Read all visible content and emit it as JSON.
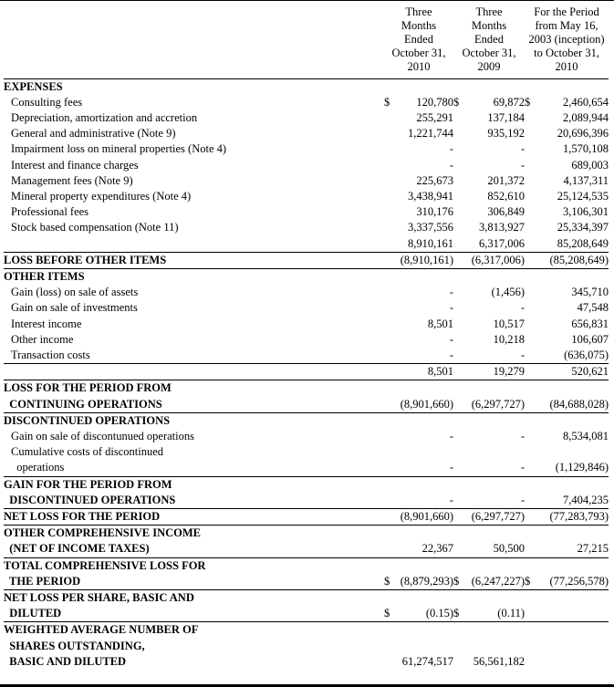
{
  "document": {
    "type": "financial-statement",
    "currency_symbol": "$",
    "colors": {
      "text": "#000000",
      "background": "#ffffff",
      "rule": "#000000"
    }
  },
  "table": {
    "columns": [
      {
        "name": "three-months-2010",
        "lines": [
          "Three",
          "Months",
          "Ended",
          "October 31,",
          "2010"
        ]
      },
      {
        "name": "three-months-2009",
        "lines": [
          "Three",
          "Months",
          "Ended",
          "October 31,",
          "2009"
        ]
      },
      {
        "name": "inception-to-date",
        "lines": [
          "For the Period",
          "from May 16,",
          "2003 (inception)",
          "to October 31,",
          "2010"
        ]
      }
    ],
    "rows": [
      {
        "label_lines": [
          "EXPENSES"
        ],
        "bold": true,
        "values": [
          "",
          "",
          ""
        ]
      },
      {
        "label_lines": [
          "Consulting fees"
        ],
        "indent": true,
        "dollars": [
          true,
          true,
          true
        ],
        "values": [
          "120,780",
          "69,872",
          "2,460,654"
        ]
      },
      {
        "label_lines": [
          "Depreciation, amortization and accretion"
        ],
        "indent": true,
        "values": [
          "255,291",
          "137,184",
          "2,089,944"
        ]
      },
      {
        "label_lines": [
          "General and administrative (Note 9)"
        ],
        "indent": true,
        "values": [
          "1,221,744",
          "935,192",
          "20,696,396"
        ]
      },
      {
        "label_lines": [
          "Impairment loss on mineral properties (Note 4)"
        ],
        "indent": true,
        "values": [
          "-",
          "-",
          "1,570,108"
        ]
      },
      {
        "label_lines": [
          "Interest and finance charges"
        ],
        "indent": true,
        "values": [
          "-",
          "-",
          "689,003"
        ]
      },
      {
        "label_lines": [
          "Management fees (Note 9)"
        ],
        "indent": true,
        "values": [
          "225,673",
          "201,372",
          "4,137,311"
        ]
      },
      {
        "label_lines": [
          "Mineral property expenditures (Note 4)"
        ],
        "indent": true,
        "values": [
          "3,438,941",
          "852,610",
          "25,124,535"
        ]
      },
      {
        "label_lines": [
          "Professional fees"
        ],
        "indent": true,
        "values": [
          "310,176",
          "306,849",
          "3,106,301"
        ]
      },
      {
        "label_lines": [
          "Stock based compensation (Note 11)"
        ],
        "indent": true,
        "values": [
          "3,337,556",
          "3,813,927",
          "25,334,397"
        ]
      },
      {
        "label_lines": [
          ""
        ],
        "values": [
          "8,910,161",
          "6,317,006",
          "85,208,649"
        ],
        "border_bottom": true
      },
      {
        "label_lines": [
          "LOSS BEFORE OTHER ITEMS"
        ],
        "bold": true,
        "values": [
          "(8,910,161)",
          "(6,317,006)",
          "(85,208,649)"
        ],
        "border_bottom": true
      },
      {
        "label_lines": [
          "OTHER ITEMS"
        ],
        "bold": true,
        "values": [
          "",
          "",
          ""
        ]
      },
      {
        "label_lines": [
          "Gain (loss) on sale of assets"
        ],
        "indent": true,
        "values": [
          "-",
          "(1,456)",
          "345,710"
        ]
      },
      {
        "label_lines": [
          "Gain on sale of investments"
        ],
        "indent": true,
        "values": [
          "-",
          "-",
          "47,548"
        ]
      },
      {
        "label_lines": [
          "Interest income"
        ],
        "indent": true,
        "values": [
          "8,501",
          "10,517",
          "656,831"
        ]
      },
      {
        "label_lines": [
          "Other income"
        ],
        "indent": true,
        "values": [
          "-",
          "10,218",
          "106,607"
        ]
      },
      {
        "label_lines": [
          "Transaction costs"
        ],
        "indent": true,
        "values": [
          "-",
          "-",
          "(636,075)"
        ],
        "border_bottom": true
      },
      {
        "label_lines": [
          ""
        ],
        "values": [
          "8,501",
          "19,279",
          "520,621"
        ],
        "border_bottom": true
      },
      {
        "label_lines": [
          "LOSS FOR THE PERIOD FROM",
          "  CONTINUING OPERATIONS"
        ],
        "bold": true,
        "values": [
          "(8,901,660)",
          "(6,297,727)",
          "(84,688,028)"
        ],
        "border_bottom": true
      },
      {
        "label_lines": [
          "DISCONTINUED OPERATIONS"
        ],
        "bold": true,
        "values": [
          "",
          "",
          ""
        ]
      },
      {
        "label_lines": [
          "Gain on sale of discontunued operations"
        ],
        "indent": true,
        "values": [
          "-",
          "-",
          "8,534,081"
        ]
      },
      {
        "label_lines": [
          "Cumulative costs of discontinued",
          "  operations"
        ],
        "indent": true,
        "values": [
          "-",
          "-",
          "(1,129,846)"
        ],
        "border_bottom": true
      },
      {
        "label_lines": [
          "GAIN FOR THE PERIOD FROM",
          "  DISCONTINUED OPERATIONS"
        ],
        "bold": true,
        "values": [
          "-",
          "-",
          "7,404,235"
        ],
        "border_bottom": true
      },
      {
        "label_lines": [
          "NET LOSS FOR THE PERIOD"
        ],
        "bold": true,
        "values": [
          "(8,901,660)",
          "(6,297,727)",
          "(77,283,793)"
        ],
        "border_bottom": true
      },
      {
        "label_lines": [
          "OTHER COMPREHENSIVE INCOME",
          "  (NET OF INCOME TAXES)"
        ],
        "bold": true,
        "values": [
          "22,367",
          "50,500",
          "27,215"
        ],
        "border_bottom": true
      },
      {
        "label_lines": [
          "TOTAL COMPREHENSIVE LOSS FOR",
          "  THE PERIOD"
        ],
        "bold": true,
        "dollars": [
          true,
          true,
          true
        ],
        "values": [
          "(8,879,293)",
          "(6,247,227)",
          "(77,256,578)"
        ],
        "border_bottom": true
      },
      {
        "label_lines": [
          "NET LOSS PER SHARE, BASIC AND",
          "  DILUTED"
        ],
        "bold": true,
        "dollars": [
          true,
          true,
          false
        ],
        "values": [
          "(0.15)",
          "(0.11)",
          ""
        ],
        "border_bottom": true
      },
      {
        "label_lines": [
          ""
        ],
        "values": [
          "",
          "",
          ""
        ]
      },
      {
        "label_lines": [
          "WEIGHTED AVERAGE NUMBER OF",
          "  SHARES OUTSTANDING,",
          "  BASIC AND DILUTED"
        ],
        "bold": true,
        "values": [
          "61,274,517",
          "56,561,182",
          ""
        ]
      }
    ]
  }
}
